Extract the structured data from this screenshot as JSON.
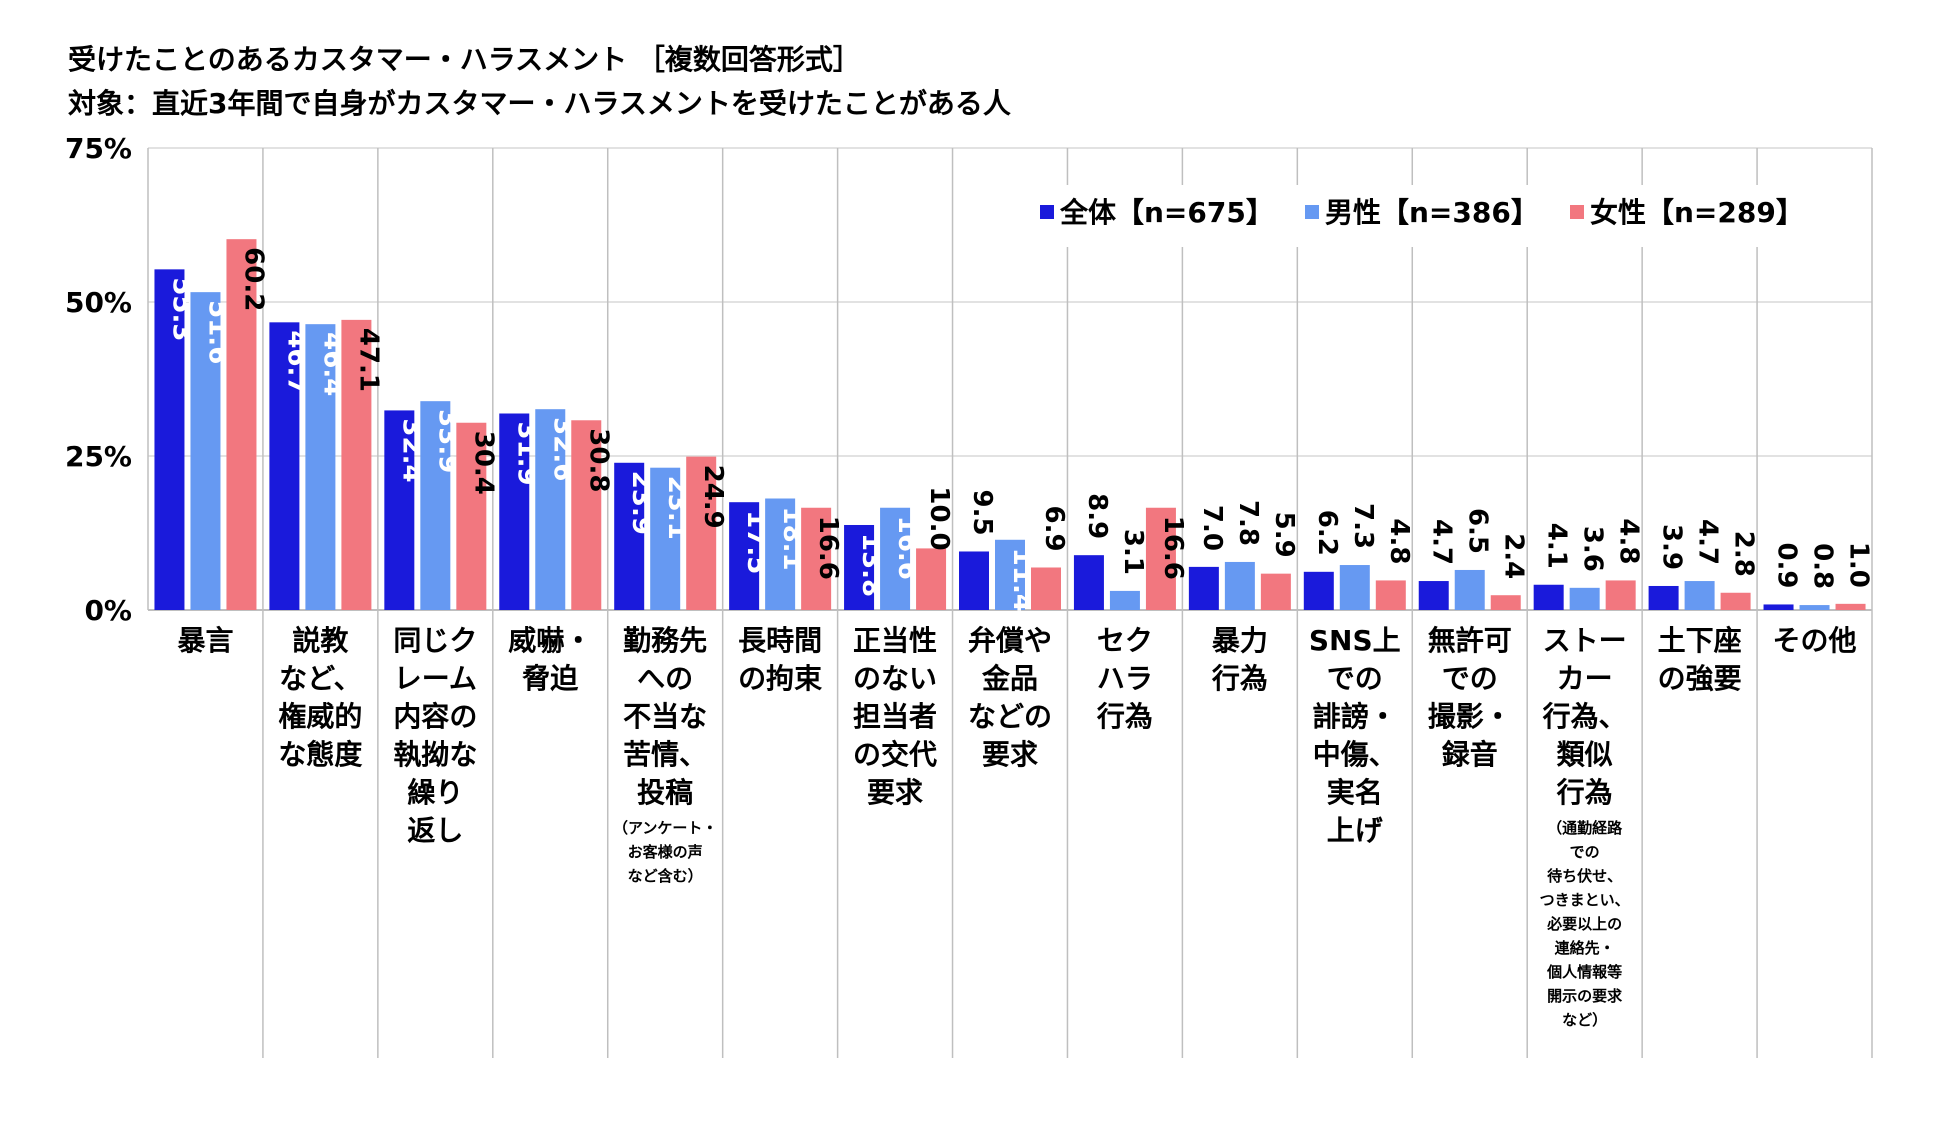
{
  "header": {
    "title": "受けたことのあるカスタマー・ハラスメント ［複数回答形式］",
    "subtitle": "対象：直近3年間で自身がカスタマー・ハラスメントを受けたことがある人"
  },
  "chart_data": {
    "type": "bar",
    "ylim": [
      0,
      75
    ],
    "yticks": [
      "0%",
      "25%",
      "50%",
      "75%"
    ],
    "legend_position": "top-right",
    "categories": [
      {
        "label": "暴言",
        "note": ""
      },
      {
        "label": "説教\nなど、\n権威的\nな態度",
        "note": ""
      },
      {
        "label": "同じク\nレーム\n内容の\n執拗な\n繰り\n返し",
        "note": ""
      },
      {
        "label": "威嚇・\n脅迫",
        "note": ""
      },
      {
        "label": "勤務先\nへの\n不当な\n苦情、\n投稿",
        "note": "（アンケート・\nお客様の声\nなど含む）"
      },
      {
        "label": "長時間\nの拘束",
        "note": ""
      },
      {
        "label": "正当性\nのない\n担当者\nの交代\n要求",
        "note": ""
      },
      {
        "label": "弁償や\n金品\nなどの\n要求",
        "note": ""
      },
      {
        "label": "セク\nハラ\n行為",
        "note": ""
      },
      {
        "label": "暴力\n行為",
        "note": ""
      },
      {
        "label": "SNS上\nでの\n誹謗・\n中傷、\n実名\n上げ",
        "note": ""
      },
      {
        "label": "無許可\nでの\n撮影・\n録音",
        "note": ""
      },
      {
        "label": "ストー\nカー\n行為、\n類似\n行為",
        "note": "（通勤経路\nでの\n待ち伏せ、\nつきまとい、\n必要以上の\n連絡先・\n個人情報等\n開示の要求\nなど）"
      },
      {
        "label": "土下座\nの強要",
        "note": ""
      },
      {
        "label": "その他",
        "note": ""
      }
    ],
    "series": [
      {
        "name": "全体【n=675】",
        "color": "#1a1adb",
        "values": [
          55.3,
          46.7,
          32.4,
          31.9,
          23.9,
          17.5,
          13.8,
          9.5,
          8.9,
          7.0,
          6.2,
          4.7,
          4.1,
          3.9,
          0.9
        ],
        "labels": [
          "55.3",
          "46.7",
          "32.4",
          "31.9",
          "23.9",
          "17.5",
          "13.8",
          "9.5",
          "8.9",
          "7.0",
          "6.2",
          "4.7",
          "4.1",
          "3.9",
          "0.9"
        ]
      },
      {
        "name": "男性【n=386】",
        "color": "#6699f2",
        "values": [
          51.6,
          46.4,
          33.9,
          32.6,
          23.1,
          18.1,
          16.6,
          11.4,
          3.1,
          7.8,
          7.3,
          6.5,
          3.6,
          4.7,
          0.8
        ],
        "labels": [
          "51.6",
          "46.4",
          "33.9",
          "32.6",
          "23.1",
          "18.1",
          "16.6",
          "11.4",
          "3.1",
          "7.8",
          "7.3",
          "6.5",
          "3.6",
          "4.7",
          "0.8"
        ]
      },
      {
        "name": "女性【n=289】",
        "color": "#f2777f",
        "values": [
          60.2,
          47.1,
          30.4,
          30.8,
          24.9,
          16.6,
          10.0,
          6.9,
          16.6,
          5.9,
          4.8,
          2.4,
          4.8,
          2.8,
          1.0
        ],
        "labels": [
          "60.2",
          "47.1",
          "30.4",
          "30.8",
          "24.9",
          "16.6",
          "10.0",
          "6.9",
          "16.6",
          "5.9",
          "4.8",
          "2.4",
          "4.8",
          "2.8",
          "1.0"
        ]
      }
    ]
  }
}
